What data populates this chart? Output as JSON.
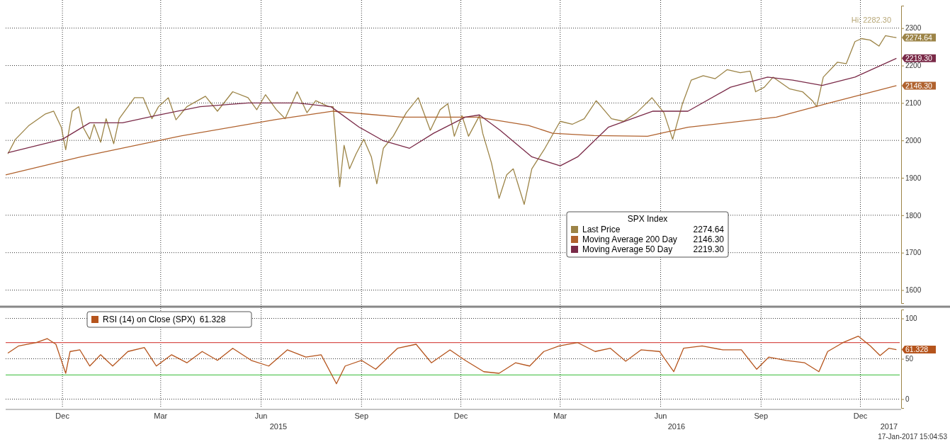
{
  "chart_data": [
    {
      "type": "line",
      "xlim": [
        "2014-10-24",
        "2017-01-20"
      ],
      "ylim": [
        1565,
        2360
      ],
      "yticks": [
        1600,
        1700,
        1800,
        1900,
        2000,
        2100,
        2200,
        2300
      ],
      "xticks": [
        {
          "value": "2014-12-15",
          "label": null
        },
        {
          "value": "2015-03-15",
          "label": null
        },
        {
          "value": "2015-06-15",
          "label": null
        },
        {
          "value": "2015-09-15",
          "label": null
        },
        {
          "value": "2015-12-15",
          "label": null
        },
        {
          "value": "2016-03-15",
          "label": null
        },
        {
          "value": "2016-06-15",
          "label": null
        },
        {
          "value": "2016-09-15",
          "label": null
        },
        {
          "value": "2016-12-15",
          "label": null
        }
      ],
      "tick_labels": "y",
      "grid": true,
      "legend": "bottom",
      "legend_title": "SPX Index",
      "annotations": [
        "Hi: 2282.30"
      ],
      "series": [
        {
          "name": "Last Price",
          "color": "#9c8447",
          "x": [
            "2014-10-26",
            "2014-11-02",
            "2014-11-14",
            "2014-11-29",
            "2014-12-07",
            "2014-12-14",
            "2014-12-18",
            "2014-12-24",
            "2014-12-30",
            "2015-01-03",
            "2015-01-09",
            "2015-01-13",
            "2015-01-19",
            "2015-01-24",
            "2015-01-31",
            "2015-02-05",
            "2015-02-19",
            "2015-02-27",
            "2015-03-07",
            "2015-03-13",
            "2015-03-22",
            "2015-03-29",
            "2015-04-08",
            "2015-04-25",
            "2015-05-06",
            "2015-05-20",
            "2015-06-03",
            "2015-06-11",
            "2015-06-19",
            "2015-06-29",
            "2015-07-07",
            "2015-07-18",
            "2015-07-27",
            "2015-08-04",
            "2015-08-16",
            "2015-08-20",
            "2015-08-26",
            "2015-08-30",
            "2015-09-04",
            "2015-09-10",
            "2015-09-17",
            "2015-09-24",
            "2015-09-29",
            "2015-10-05",
            "2015-10-14",
            "2015-10-26",
            "2015-11-06",
            "2015-11-17",
            "2015-11-26",
            "2015-12-03",
            "2015-12-09",
            "2015-12-16",
            "2015-12-22",
            "2016-01-01",
            "2016-01-04",
            "2016-01-12",
            "2016-01-19",
            "2016-01-26",
            "2016-02-01",
            "2016-02-11",
            "2016-02-18",
            "2016-03-01",
            "2016-03-15",
            "2016-03-26",
            "2016-04-06",
            "2016-04-17",
            "2016-05-01",
            "2016-05-12",
            "2016-05-24",
            "2016-06-07",
            "2016-06-18",
            "2016-06-26",
            "2016-07-05",
            "2016-07-13",
            "2016-07-24",
            "2016-08-04",
            "2016-08-15",
            "2016-08-27",
            "2016-09-05",
            "2016-09-10",
            "2016-09-18",
            "2016-09-26",
            "2016-10-11",
            "2016-10-23",
            "2016-11-01",
            "2016-11-05",
            "2016-11-11",
            "2016-11-24",
            "2016-12-02",
            "2016-12-10",
            "2016-12-16",
            "2016-12-24",
            "2017-01-01",
            "2017-01-07",
            "2017-01-14",
            "2017-01-17"
          ],
          "values": [
            1964,
            2003,
            2039,
            2070,
            2078,
            2035,
            1975,
            2078,
            2090,
            2035,
            2003,
            2043,
            1995,
            2058,
            1991,
            2058,
            2114,
            2114,
            2058,
            2090,
            2114,
            2055,
            2090,
            2118,
            2078,
            2130,
            2114,
            2082,
            2122,
            2082,
            2058,
            2130,
            2074,
            2106,
            2090,
            2090,
            1876,
            1987,
            1924,
            1964,
            2003,
            1956,
            1884,
            1979,
            2011,
            2074,
            2114,
            2027,
            2082,
            2098,
            2011,
            2066,
            2011,
            2066,
            2019,
            1940,
            1845,
            1908,
            1924,
            1829,
            1924,
            1979,
            2051,
            2043,
            2058,
            2106,
            2058,
            2051,
            2074,
            2114,
            2074,
            2003,
            2098,
            2161,
            2173,
            2165,
            2189,
            2181,
            2185,
            2130,
            2142,
            2169,
            2138,
            2130,
            2106,
            2090,
            2169,
            2209,
            2205,
            2264,
            2272,
            2268,
            2252,
            2280,
            2276,
            2274.64
          ],
          "value_labels": [
            null,
            null,
            null,
            null,
            null,
            null,
            null,
            null,
            null,
            null,
            null,
            null,
            null,
            null,
            null,
            null,
            null,
            null,
            null,
            null,
            null,
            null,
            null,
            null,
            null,
            null,
            null,
            null,
            null,
            null,
            null,
            null,
            null,
            null,
            null,
            null,
            null,
            null,
            null,
            null,
            null,
            null,
            null,
            null,
            null,
            null,
            null,
            null,
            null,
            null,
            null,
            null,
            null,
            null,
            null,
            null,
            null,
            null,
            null,
            null,
            null,
            null,
            null,
            null,
            null,
            null,
            null,
            null,
            null,
            null,
            null,
            null,
            null,
            null,
            null,
            null,
            null,
            null,
            null,
            null,
            null,
            null,
            null,
            null,
            null,
            null,
            null,
            null,
            null,
            null,
            null,
            null,
            null,
            null,
            null,
            "2274.64"
          ]
        },
        {
          "name": "Moving Average 200 Day",
          "color": "#b0622e",
          "x": [
            "2014-10-24",
            "2015-01-01",
            "2015-04-01",
            "2015-06-29",
            "2015-08-20",
            "2015-10-22",
            "2015-12-30",
            "2016-02-15",
            "2016-03-08",
            "2016-04-15",
            "2016-06-03",
            "2016-07-10",
            "2016-09-29",
            "2016-11-14",
            "2017-01-17"
          ],
          "values": [
            1908,
            1956,
            2011,
            2056,
            2078,
            2062,
            2062,
            2040,
            2019,
            2013,
            2011,
            2035,
            2062,
            2098,
            2146.3
          ],
          "value_labels": [
            null,
            null,
            null,
            null,
            null,
            null,
            null,
            null,
            null,
            null,
            null,
            null,
            null,
            null,
            "2146.30"
          ]
        },
        {
          "name": "Moving Average 50 Day",
          "color": "#7a2a48",
          "x": [
            "2014-10-26",
            "2014-12-15",
            "2015-01-09",
            "2015-02-08",
            "2015-03-10",
            "2015-04-20",
            "2015-06-03",
            "2015-07-18",
            "2015-08-18",
            "2015-09-13",
            "2015-10-05",
            "2015-10-29",
            "2015-11-20",
            "2015-12-19",
            "2016-01-01",
            "2016-01-20",
            "2016-02-18",
            "2016-03-15",
            "2016-03-31",
            "2016-04-28",
            "2016-06-08",
            "2016-07-10",
            "2016-08-18",
            "2016-09-21",
            "2016-10-14",
            "2016-11-10",
            "2016-12-10",
            "2017-01-17"
          ],
          "values": [
            1967,
            2003,
            2047,
            2047,
            2066,
            2090,
            2100,
            2100,
            2090,
            2035,
            1999,
            1979,
            2019,
            2062,
            2068,
            2027,
            1956,
            1932,
            1956,
            2035,
            2078,
            2078,
            2142,
            2169,
            2161,
            2147,
            2169,
            2219.3
          ],
          "value_labels": [
            null,
            null,
            null,
            null,
            null,
            null,
            null,
            null,
            null,
            null,
            null,
            null,
            null,
            null,
            null,
            null,
            null,
            null,
            null,
            null,
            null,
            null,
            null,
            null,
            null,
            null,
            null,
            "2219.30"
          ]
        }
      ]
    },
    {
      "type": "line",
      "xlim": [
        "2014-10-24",
        "2017-01-20"
      ],
      "ylim": [
        -11,
        111
      ],
      "yticks": [
        0,
        50,
        100
      ],
      "xticks": [
        {
          "value": "2014-12-15",
          "label": "Dec"
        },
        {
          "value": "2015-03-15",
          "label": "Mar"
        },
        {
          "value": "2015-06-15",
          "label": "Jun"
        },
        {
          "value": "2015-09-15",
          "label": "Sep"
        },
        {
          "value": "2015-12-15",
          "label": "Dec"
        },
        {
          "value": "2016-03-15",
          "label": "Mar"
        },
        {
          "value": "2016-06-15",
          "label": "Jun"
        },
        {
          "value": "2016-09-15",
          "label": "Sep"
        },
        {
          "value": "2016-12-15",
          "label": "Dec"
        }
      ],
      "grid": true,
      "legend": "top left",
      "ref_lines": [
        {
          "axis": "y",
          "value": 70,
          "color": "#d9534f"
        },
        {
          "axis": "y",
          "value": 30,
          "color": "#5cc85c"
        }
      ],
      "annotations": [
        "17-Jan-2017 15:04:53",
        "2015",
        "2016",
        "2017"
      ],
      "series": [
        {
          "name": "RSI (14) on Close (SPX)",
          "color": "#b5541c",
          "x": [
            "2014-10-26",
            "2014-11-05",
            "2014-11-21",
            "2014-12-01",
            "2014-12-09",
            "2014-12-18",
            "2014-12-22",
            "2014-12-31",
            "2015-01-09",
            "2015-01-19",
            "2015-01-30",
            "2015-02-13",
            "2015-02-28",
            "2015-03-11",
            "2015-03-25",
            "2015-04-08",
            "2015-04-22",
            "2015-05-06",
            "2015-05-20",
            "2015-06-06",
            "2015-06-22",
            "2015-07-09",
            "2015-07-26",
            "2015-08-09",
            "2015-08-23",
            "2015-08-31",
            "2015-09-15",
            "2015-09-28",
            "2015-10-18",
            "2015-11-04",
            "2015-11-18",
            "2015-12-05",
            "2015-12-19",
            "2016-01-05",
            "2016-01-19",
            "2016-02-03",
            "2016-02-16",
            "2016-02-29",
            "2016-03-14",
            "2016-03-31",
            "2016-04-16",
            "2016-04-30",
            "2016-05-14",
            "2016-05-28",
            "2016-06-14",
            "2016-06-27",
            "2016-07-06",
            "2016-07-23",
            "2016-08-11",
            "2016-08-28",
            "2016-09-11",
            "2016-09-22",
            "2016-10-08",
            "2016-10-25",
            "2016-11-07",
            "2016-11-15",
            "2016-11-29",
            "2016-12-13",
            "2016-12-24",
            "2017-01-02",
            "2017-01-10",
            "2017-01-17"
          ],
          "values": [
            57,
            66,
            70,
            75,
            68,
            32,
            59,
            61,
            41,
            55,
            41,
            59,
            64,
            41,
            55,
            45,
            59,
            48,
            63,
            48,
            41,
            61,
            52,
            55,
            19,
            41,
            48,
            37,
            63,
            68,
            45,
            61,
            48,
            34,
            32,
            45,
            41,
            59,
            66,
            70,
            59,
            63,
            47,
            61,
            59,
            34,
            63,
            66,
            61,
            61,
            37,
            52,
            48,
            45,
            34,
            59,
            70,
            78,
            66,
            54,
            63,
            61.328
          ],
          "value_labels": [
            null,
            null,
            null,
            null,
            null,
            null,
            null,
            null,
            null,
            null,
            null,
            null,
            null,
            null,
            null,
            null,
            null,
            null,
            null,
            null,
            null,
            null,
            null,
            null,
            null,
            null,
            null,
            null,
            null,
            null,
            null,
            null,
            null,
            null,
            null,
            null,
            null,
            null,
            null,
            null,
            null,
            null,
            null,
            null,
            null,
            null,
            null,
            null,
            null,
            null,
            null,
            null,
            null,
            null,
            null,
            null,
            null,
            null,
            null,
            null,
            null,
            "61.328"
          ]
        }
      ]
    }
  ]
}
